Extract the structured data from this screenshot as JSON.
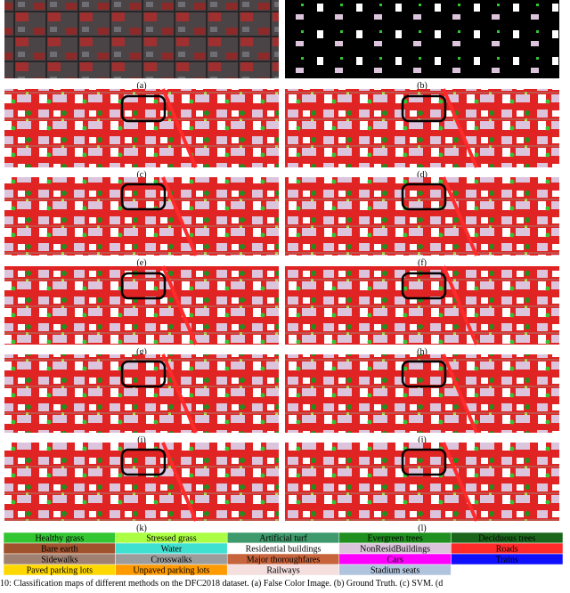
{
  "figure": {
    "panels": [
      "(a)",
      "(b)",
      "(c)",
      "(d)",
      "(e)",
      "(f)",
      "(g)",
      "(h)",
      "(i)",
      "(j)",
      "(k)",
      "(l)"
    ],
    "legend": [
      {
        "name": "Healthy grass",
        "color": "#33c633"
      },
      {
        "name": "Stressed grass",
        "color": "#aaff44"
      },
      {
        "name": "Artificial turf",
        "color": "#3e9a6c"
      },
      {
        "name": "Evergreen trees",
        "color": "#1f8f1f"
      },
      {
        "name": "Deciduous trees",
        "color": "#1c661c"
      },
      {
        "name": "Bare earth",
        "color": "#a0522d"
      },
      {
        "name": "Water",
        "color": "#40e0d0"
      },
      {
        "name": "Residential buildings",
        "color": "#ffffff"
      },
      {
        "name": "NonResidBuildings",
        "color": "#dcc4dc"
      },
      {
        "name": "Roads",
        "color": "#ff2a2a"
      },
      {
        "name": "Sidewalks",
        "color": "#a08070"
      },
      {
        "name": "Crosswalks",
        "color": "#9c9c9c"
      },
      {
        "name": "Major thoroughfares",
        "color": "#c8643c"
      },
      {
        "name": "Cars",
        "color": "#ff00ff"
      },
      {
        "name": "Trains",
        "color": "#1010ff"
      },
      {
        "name": "Paved parking lots",
        "color": "#ffd800"
      },
      {
        "name": "Unpaved parking lots",
        "color": "#ff9a00"
      },
      {
        "name": "Railways",
        "color": "#f4dede"
      },
      {
        "name": "Stadium seats",
        "color": "#b0c4de"
      }
    ],
    "caption": "10: Classification maps of different methods on the DFC2018 dataset. (a) False Color Image. (b) Ground Truth. (c) SVM. (d"
  }
}
